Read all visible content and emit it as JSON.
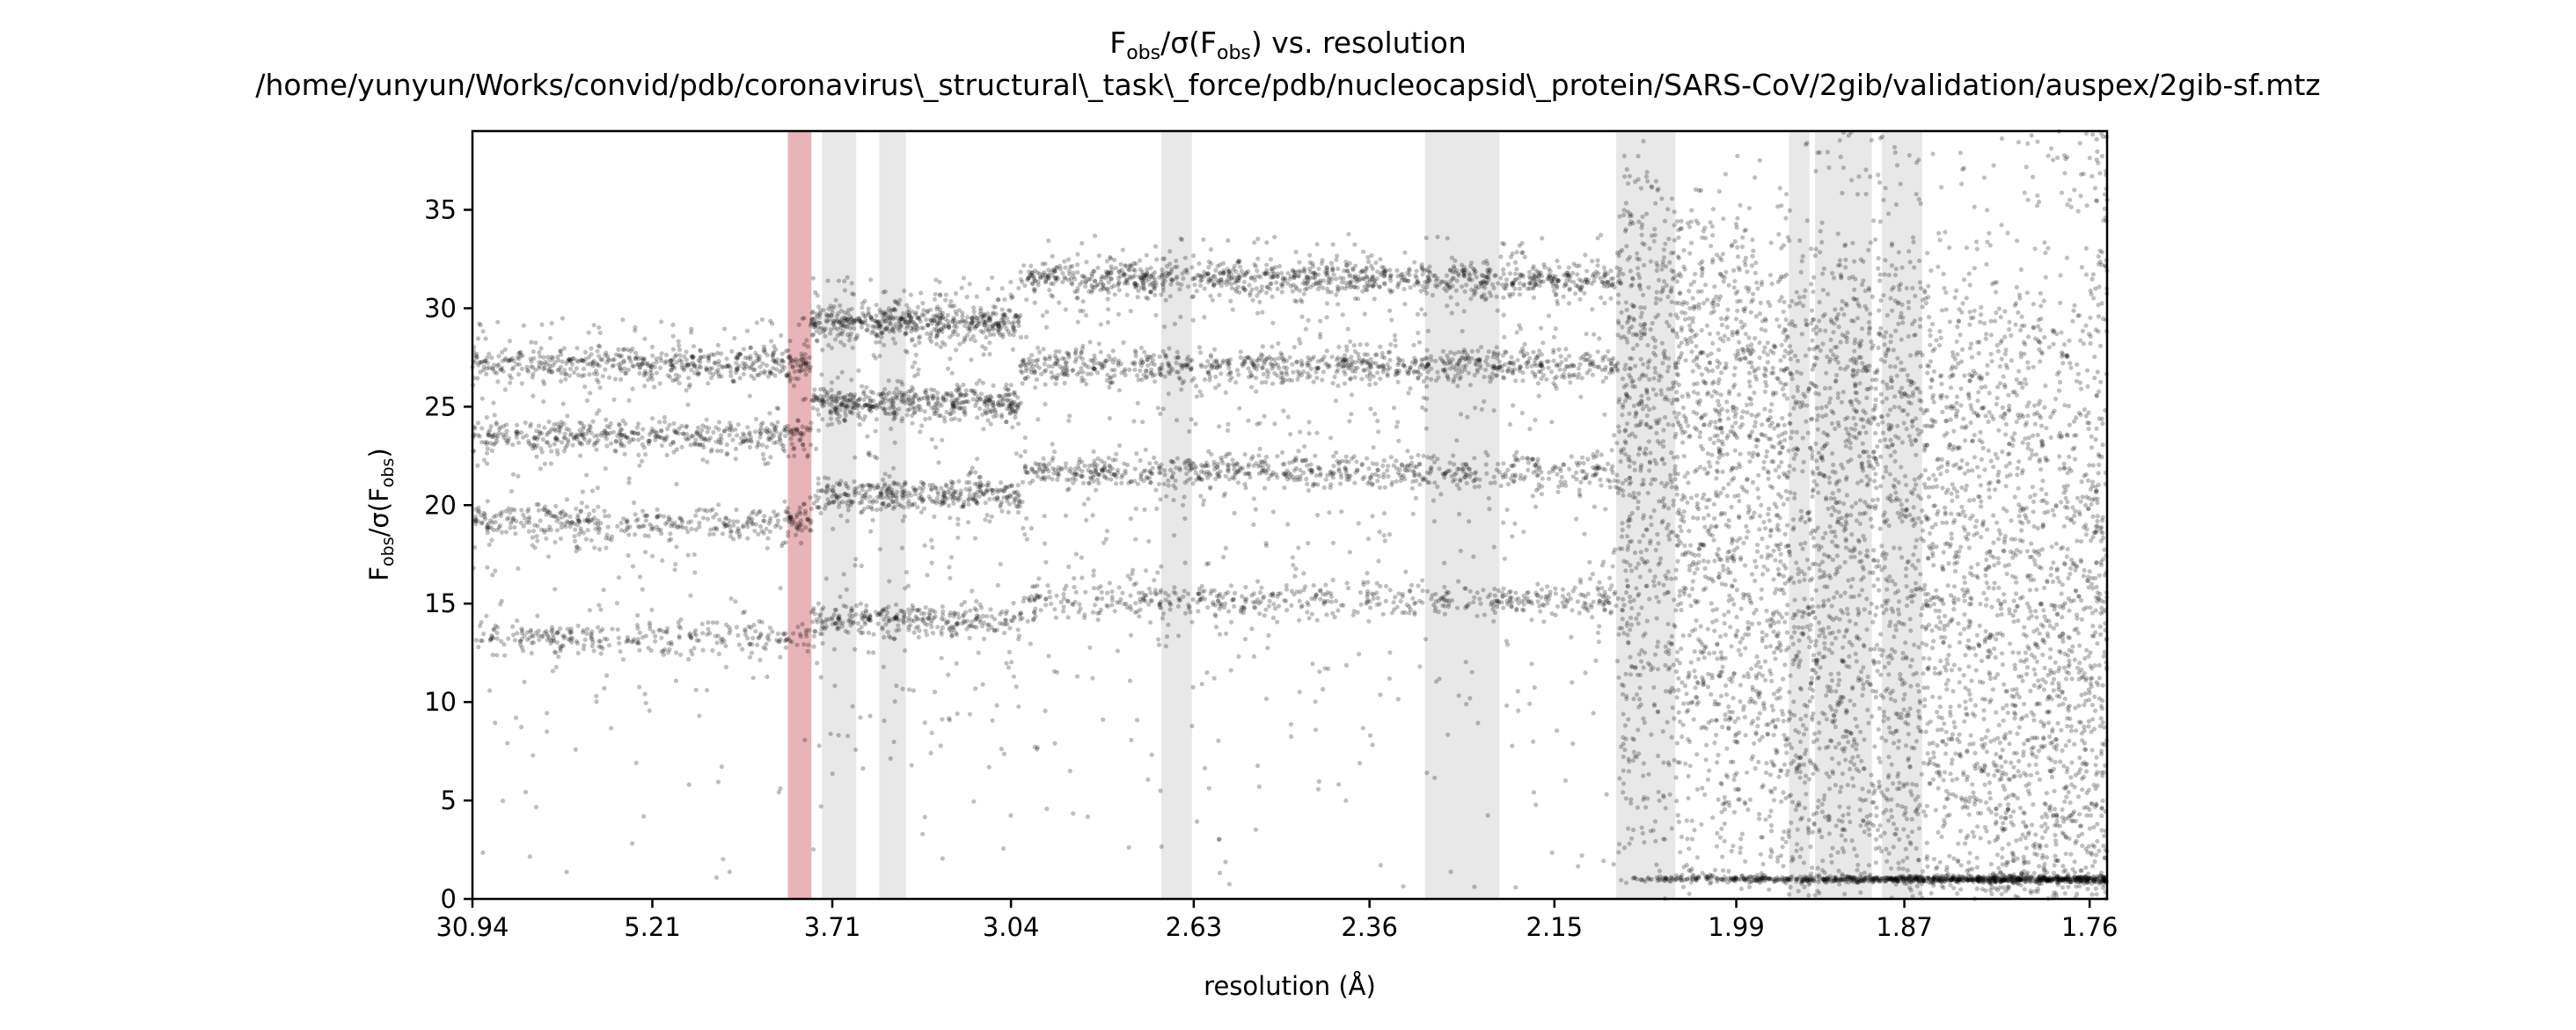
{
  "chart_data": {
    "type": "scatter",
    "title": {
      "main_pre": "F",
      "main_sub1": "obs",
      "main_mid": "/σ(F",
      "main_sub2": "obs",
      "main_post": ") vs. resolution",
      "path": "/home/yunyun/Works/convid/pdb/coronavirus\\_structural\\_task\\_force/pdb/nucleocapsid\\_protein/SARS-CoV/2gib/validation/auspex/2gib-sf.mtz"
    },
    "xlabel": "resolution (Å)",
    "ylabel": {
      "pre": "F",
      "sub1": "obs",
      "mid": "/σ(F",
      "sub2": "obs",
      "post": ")"
    },
    "x_axis": "1/d^2 (Å^-2)",
    "xlim": [
      0.00104,
      0.3263
    ],
    "ylim": [
      0,
      39
    ],
    "x_ticks": [
      {
        "label": "30.94",
        "value": 0.00104
      },
      {
        "label": "5.21",
        "value": 0.03684
      },
      {
        "label": "3.71",
        "value": 0.07265
      },
      {
        "label": "3.04",
        "value": 0.1082
      },
      {
        "label": "2.63",
        "value": 0.14457
      },
      {
        "label": "2.36",
        "value": 0.17954
      },
      {
        "label": "2.15",
        "value": 0.21633
      },
      {
        "label": "1.99",
        "value": 0.25252
      },
      {
        "label": "1.87",
        "value": 0.28596
      },
      {
        "label": "1.76",
        "value": 0.32283
      }
    ],
    "y_ticks": [
      0,
      5,
      10,
      15,
      20,
      25,
      30,
      35
    ],
    "highlight_bands": [
      {
        "range": [
          0.0638,
          0.0685
        ],
        "color": "#e8b4b8"
      },
      {
        "range": [
          0.0706,
          0.0774
        ],
        "color": "#e8e8e8"
      },
      {
        "range": [
          0.082,
          0.0873
        ],
        "color": "#e8e8e8"
      },
      {
        "range": [
          0.1381,
          0.1442
        ],
        "color": "#e8e8e8"
      },
      {
        "range": [
          0.1906,
          0.2054
        ],
        "color": "#e8e8e8"
      },
      {
        "range": [
          0.2286,
          0.2404
        ],
        "color": "#e8e8e8"
      },
      {
        "range": [
          0.263,
          0.2671
        ],
        "color": "#e8e8e8"
      },
      {
        "range": [
          0.2682,
          0.2795
        ],
        "color": "#e8e8e8"
      },
      {
        "range": [
          0.2815,
          0.2895
        ],
        "color": "#e8e8e8"
      }
    ],
    "series": [
      {
        "color": "#000000",
        "alpha": 0.25,
        "distribution": [
          {
            "x_range": [
              0.00104,
              0.0685
            ],
            "y_levels": [
              27.5,
              23.8,
              19.4,
              13.6
            ],
            "density": "high",
            "sparse_y_range": [
              0,
              27
            ]
          },
          {
            "x_range": [
              0.0685,
              0.1101
            ],
            "y_levels": [
              29.6,
              25.5,
              20.8,
              14.5
            ],
            "density": "high",
            "sparse_y_range": [
              0,
              29
            ]
          },
          {
            "x_range": [
              0.1101,
              0.229
            ],
            "y_levels": [
              31.8,
              27.4,
              22.0,
              15.5
            ],
            "density": "very high",
            "sparse_y_range": [
              0,
              33
            ]
          },
          {
            "x_range": [
              0.229,
              0.3263
            ],
            "y_range": [
              0,
              39
            ],
            "density": "dense continuous",
            "baseline_y": 1.0
          }
        ],
        "points_count_estimate": 40000
      }
    ],
    "grid": false,
    "legend": "none"
  }
}
